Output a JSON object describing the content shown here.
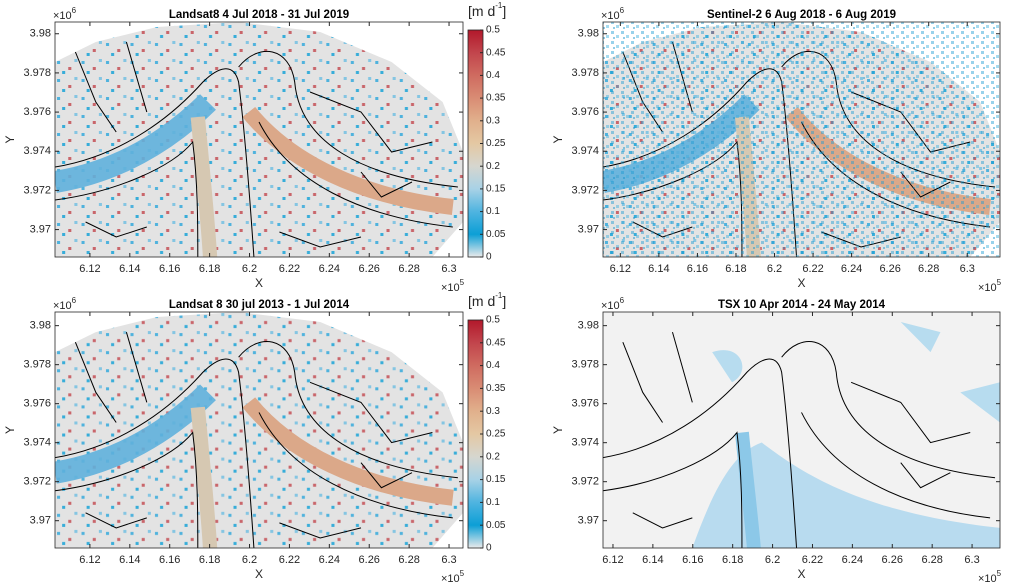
{
  "chart_data": [
    {
      "type": "heatmap",
      "title": "Landsat8 4 Jul 2018 - 31 Jul 2019",
      "x_label": "X",
      "y_label": "Y",
      "xlim": [
        6.1025,
        6.307
      ],
      "ylim": [
        3.9686,
        3.9806
      ],
      "xticks": [
        6.12,
        6.14,
        6.16,
        6.18,
        6.2,
        6.22,
        6.24,
        6.26,
        6.28,
        6.3
      ],
      "yticks": [
        3.97,
        3.972,
        3.974,
        3.976,
        3.978,
        3.98
      ],
      "x_exponent": {
        "base": "×10",
        "power": "5"
      },
      "y_exponent": {
        "base": "×10",
        "power": "6"
      },
      "colorbar": {
        "label": "[m d",
        "label_power": "-1",
        "label_end": "]",
        "lim": [
          0,
          0.5
        ],
        "ticks": [
          0,
          0.05,
          0.1,
          0.15,
          0.2,
          0.25,
          0.3,
          0.35,
          0.4,
          0.45,
          0.5
        ],
        "colors": [
          "#ebebeb",
          "#0c9fd6",
          "#4fb4e0",
          "#a8d2e6",
          "#d6d6cf",
          "#e4c8a3",
          "#e1b08c",
          "#d98c74",
          "#cf6b60",
          "#c2454c",
          "#b2182b"
        ]
      }
    },
    {
      "type": "heatmap",
      "title": "Sentinel-2 6 Aug 2018 - 6 Aug 2019",
      "x_label": "X",
      "y_label": "Y",
      "xlim": [
        6.111,
        6.317
      ],
      "ylim": [
        3.9686,
        3.9806
      ],
      "xticks": [
        6.12,
        6.14,
        6.16,
        6.18,
        6.2,
        6.22,
        6.24,
        6.26,
        6.28,
        6.3
      ],
      "yticks": [
        3.97,
        3.972,
        3.974,
        3.976,
        3.978,
        3.98
      ],
      "x_exponent": {
        "base": "×10",
        "power": "5"
      },
      "y_exponent": {
        "base": "×10",
        "power": "6"
      }
    },
    {
      "type": "heatmap",
      "title": "Landsat 8 30 jul 2013 - 1 Jul 2014",
      "x_label": "X",
      "y_label": "Y",
      "xlim": [
        6.1025,
        6.307
      ],
      "ylim": [
        3.9686,
        3.9807
      ],
      "xticks": [
        6.12,
        6.14,
        6.16,
        6.18,
        6.2,
        6.22,
        6.24,
        6.26,
        6.28,
        6.3
      ],
      "yticks": [
        3.97,
        3.972,
        3.974,
        3.976,
        3.978,
        3.98
      ],
      "x_exponent": {
        "base": "×10",
        "power": "5"
      },
      "y_exponent": {
        "base": "×10",
        "power": "6"
      },
      "colorbar": {
        "label": "[m d",
        "label_power": "-1",
        "label_end": "]",
        "lim": [
          0,
          0.5
        ],
        "ticks": [
          0,
          0.05,
          0.1,
          0.15,
          0.2,
          0.25,
          0.3,
          0.35,
          0.4,
          0.45,
          0.5
        ],
        "colors": [
          "#ebebeb",
          "#0c9fd6",
          "#4fb4e0",
          "#a8d2e6",
          "#d6d6cf",
          "#e4c8a3",
          "#e1b08c",
          "#d98c74",
          "#cf6b60",
          "#c2454c",
          "#b2182b"
        ]
      }
    },
    {
      "type": "heatmap",
      "title": "TSX 10 Apr 2014 - 24 May 2014",
      "x_label": "X",
      "y_label": "Y",
      "xlim": [
        6.115,
        6.314
      ],
      "ylim": [
        3.9686,
        3.9807
      ],
      "xticks": [
        6.12,
        6.14,
        6.16,
        6.18,
        6.2,
        6.22,
        6.24,
        6.26,
        6.28,
        6.3
      ],
      "yticks": [
        3.97,
        3.972,
        3.974,
        3.976,
        3.978,
        3.98
      ],
      "x_exponent": {
        "base": "×10",
        "power": "5"
      },
      "y_exponent": {
        "base": "×10",
        "power": "6"
      }
    }
  ]
}
